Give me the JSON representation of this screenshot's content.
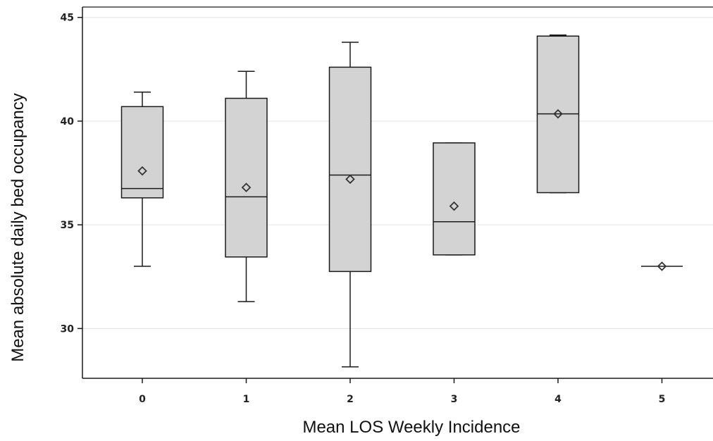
{
  "chart_data": {
    "type": "box",
    "title": "",
    "xlabel": "Mean LOS Weekly Incidence",
    "ylabel": "Mean  absolute daily bed occupancy",
    "categories": [
      "0",
      "1",
      "2",
      "3",
      "4",
      "5"
    ],
    "ylim": [
      27.6,
      45.5
    ],
    "yticks": [
      "30",
      "35",
      "40",
      "45"
    ],
    "grid": true,
    "boxes": [
      {
        "category": "0",
        "whisker_low": 33.0,
        "q1": 36.3,
        "median": 36.75,
        "q3": 40.7,
        "whisker_high": 41.4,
        "mean": 37.6
      },
      {
        "category": "1",
        "whisker_low": 31.3,
        "q1": 33.45,
        "median": 36.35,
        "q3": 41.1,
        "whisker_high": 42.4,
        "mean": 36.8
      },
      {
        "category": "2",
        "whisker_low": 28.15,
        "q1": 32.75,
        "median": 37.4,
        "q3": 42.6,
        "whisker_high": 43.8,
        "mean": 37.2
      },
      {
        "category": "3",
        "whisker_low": 33.55,
        "q1": 33.55,
        "median": 35.15,
        "q3": 38.95,
        "whisker_high": 38.95,
        "mean": 35.9
      },
      {
        "category": "4",
        "whisker_low": 36.55,
        "q1": 36.55,
        "median": 40.35,
        "q3": 44.1,
        "whisker_high": 44.15,
        "mean": 40.35
      },
      {
        "category": "5",
        "whisker_low": 33.0,
        "q1": 33.0,
        "median": 33.0,
        "q3": 33.0,
        "whisker_high": 33.0,
        "mean": 33.0
      }
    ],
    "colors": {
      "box_fill": "#d3d3d3",
      "stroke": "#1a1a1a",
      "grid": "#e3e3e3"
    }
  }
}
